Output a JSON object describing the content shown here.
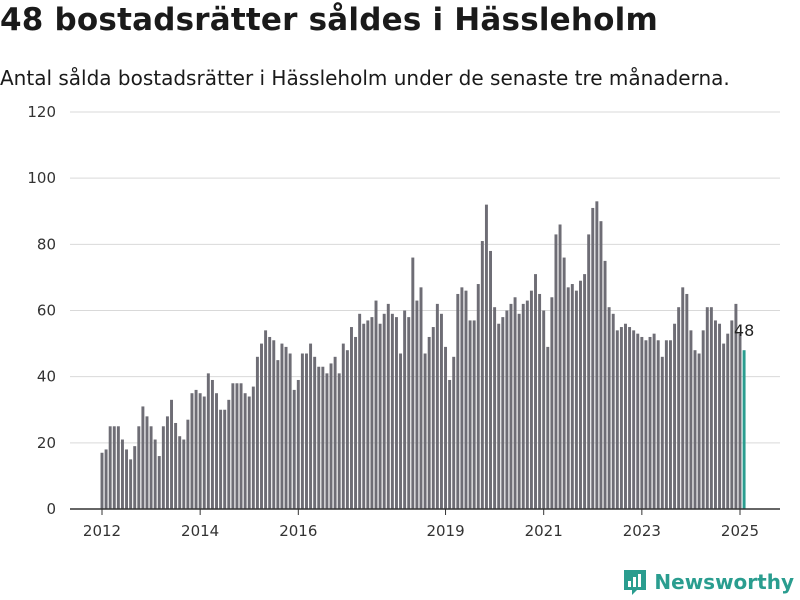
{
  "header": {
    "title": "48 bostadsrätter såldes i Hässleholm",
    "subtitle": "Antal sålda bostadsrätter i Hässleholm under de senaste tre månaderna."
  },
  "brand": {
    "name": "Newsworthy",
    "icon": "newsworthy-logo-icon",
    "color": "#2a9d8f"
  },
  "colors": {
    "bar": "#6e6d75",
    "highlight": "#2a9d8f",
    "grid": "#d9d9d9",
    "axis": "#333333"
  },
  "chart_data": {
    "type": "bar",
    "title": "48 bostadsrätter såldes i Hässleholm",
    "subtitle": "Antal sålda bostadsrätter i Hässleholm under de senaste tre månaderna.",
    "xlabel": "",
    "ylabel": "",
    "ylim": [
      0,
      120
    ],
    "yticks": [
      "0",
      "20",
      "40",
      "60",
      "80",
      "100",
      "120"
    ],
    "xticks": [
      "2012",
      "2014",
      "2016",
      "2019",
      "2021",
      "2023",
      "2025"
    ],
    "x_range": [
      "2012-01",
      "2025-01"
    ],
    "grid": true,
    "period": "monthly",
    "highlight_last": true,
    "last_label": "48",
    "series": [
      {
        "start": "2012-01",
        "values": [
          17,
          18,
          25,
          25,
          25,
          21,
          18,
          15,
          19,
          25,
          31,
          28,
          25,
          21,
          16,
          25,
          28,
          33,
          26,
          22,
          21,
          27,
          35,
          36,
          35,
          34,
          41,
          39,
          35,
          30,
          30,
          33,
          38,
          38,
          38,
          35,
          34,
          37,
          46,
          50,
          54,
          52,
          51,
          45,
          50,
          49,
          47,
          36,
          39,
          47,
          47,
          50,
          46,
          43,
          43,
          41,
          44,
          46,
          41,
          50,
          48,
          55,
          52,
          59,
          56,
          57,
          58,
          63,
          56,
          59,
          62,
          59,
          58,
          47,
          60,
          58,
          76,
          63,
          67,
          47,
          52,
          55,
          62,
          59,
          49,
          39,
          46,
          65,
          67,
          66,
          57,
          57,
          68,
          81,
          92,
          78,
          61,
          56,
          58,
          60,
          62,
          64,
          59,
          62,
          63,
          66,
          71,
          65,
          60,
          49,
          64,
          83,
          86,
          76,
          67,
          68,
          66,
          69,
          71,
          83,
          91,
          93,
          87,
          75,
          61,
          59,
          54,
          55,
          56,
          55,
          54,
          53,
          52,
          51,
          52,
          53,
          51,
          46,
          51,
          51,
          56,
          61,
          67,
          65,
          54,
          48,
          47,
          54,
          61,
          61,
          57,
          56,
          50,
          53,
          57,
          62,
          53,
          48
        ]
      }
    ]
  }
}
